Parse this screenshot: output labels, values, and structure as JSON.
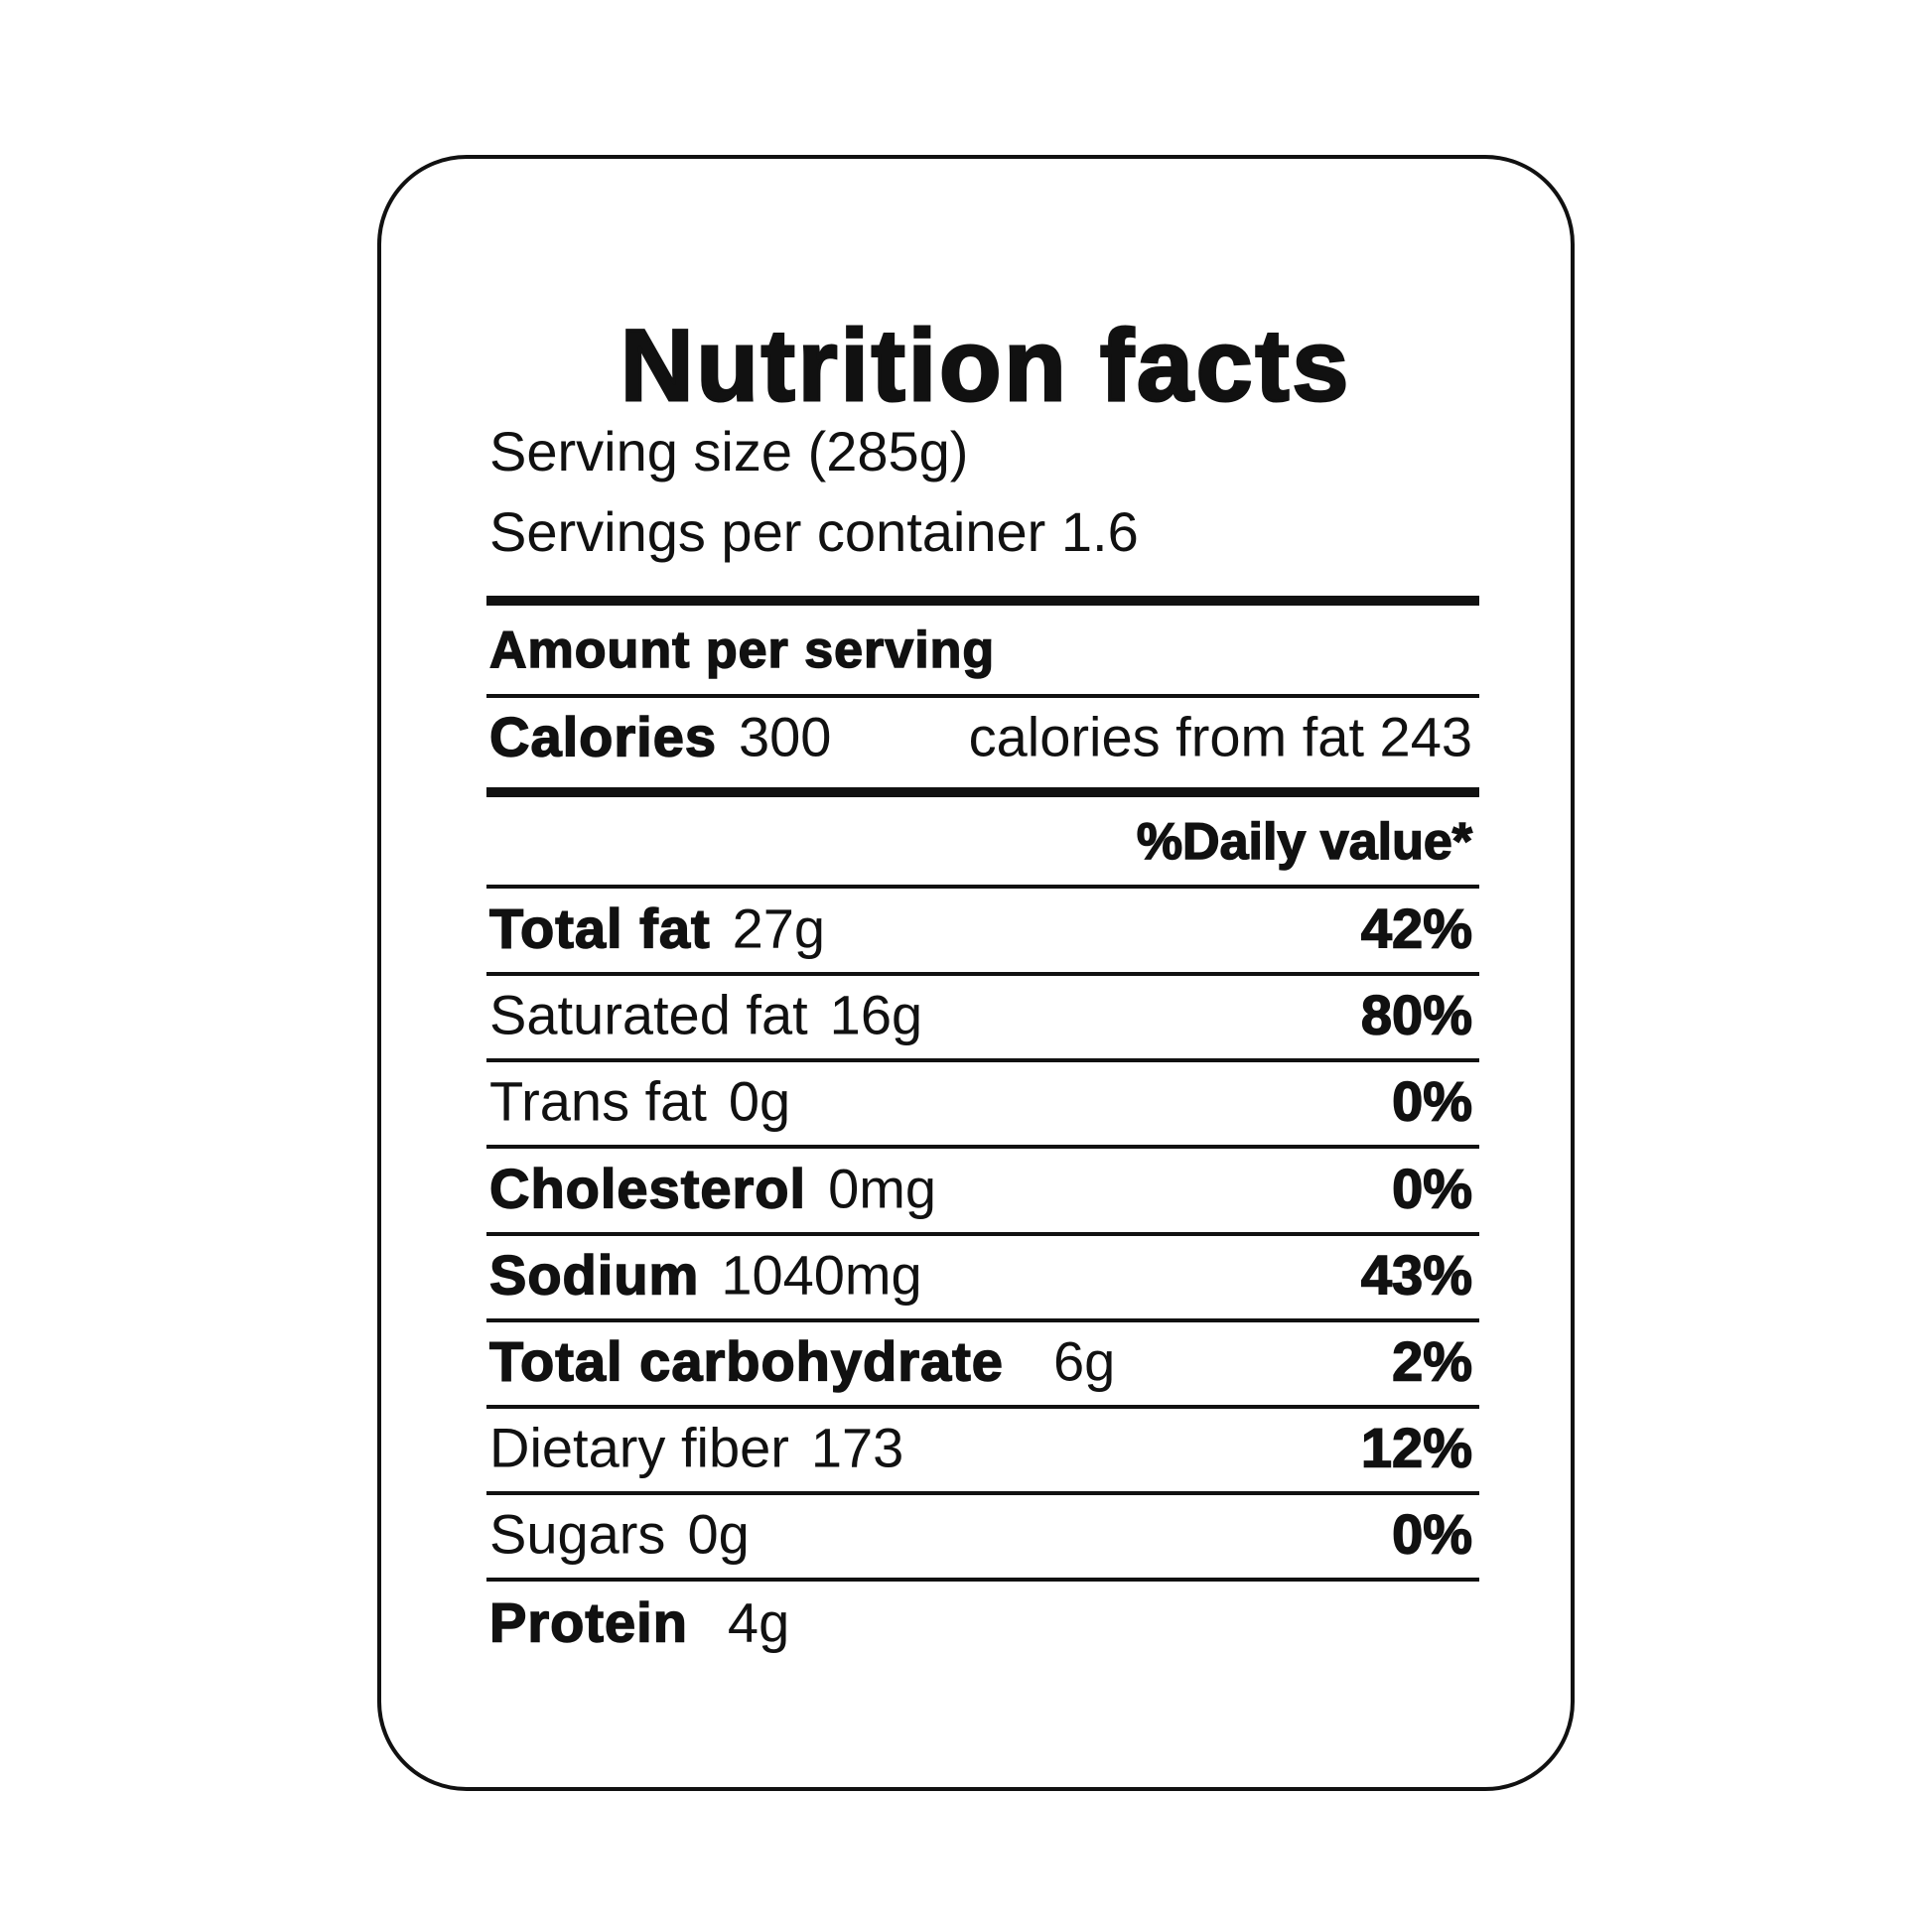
{
  "header": {
    "title": "Nutrition facts",
    "serving_size": "Serving size (285g)",
    "servings_per_container": "Servings per container 1.6"
  },
  "amount_per_serving": "Amount per serving",
  "calories": {
    "label": "Calories",
    "value": "300",
    "from_fat": "calories from fat 243"
  },
  "daily_value_header": "%Daily value*",
  "rows": [
    {
      "name": "Total fat",
      "amount": "27g",
      "percent": "42%",
      "bold": true
    },
    {
      "name": "Saturated fat",
      "amount": "16g",
      "percent": "80%",
      "bold": false
    },
    {
      "name": "Trans fat",
      "amount": "0g",
      "percent": "0%",
      "bold": false
    },
    {
      "name": "Cholesterol",
      "amount": "0mg",
      "percent": "0%",
      "bold": true
    },
    {
      "name": "Sodium",
      "amount": "1040mg",
      "percent": "43%",
      "bold": true
    },
    {
      "name": "Total carbohydrate",
      "amount": "6g",
      "percent": "2%",
      "bold": true
    },
    {
      "name": "Dietary fiber",
      "amount": "173",
      "percent": "12%",
      "bold": false
    },
    {
      "name": "Sugars",
      "amount": "0g",
      "percent": "0%",
      "bold": false
    }
  ],
  "protein": {
    "name": "Protein",
    "amount": "4g"
  }
}
